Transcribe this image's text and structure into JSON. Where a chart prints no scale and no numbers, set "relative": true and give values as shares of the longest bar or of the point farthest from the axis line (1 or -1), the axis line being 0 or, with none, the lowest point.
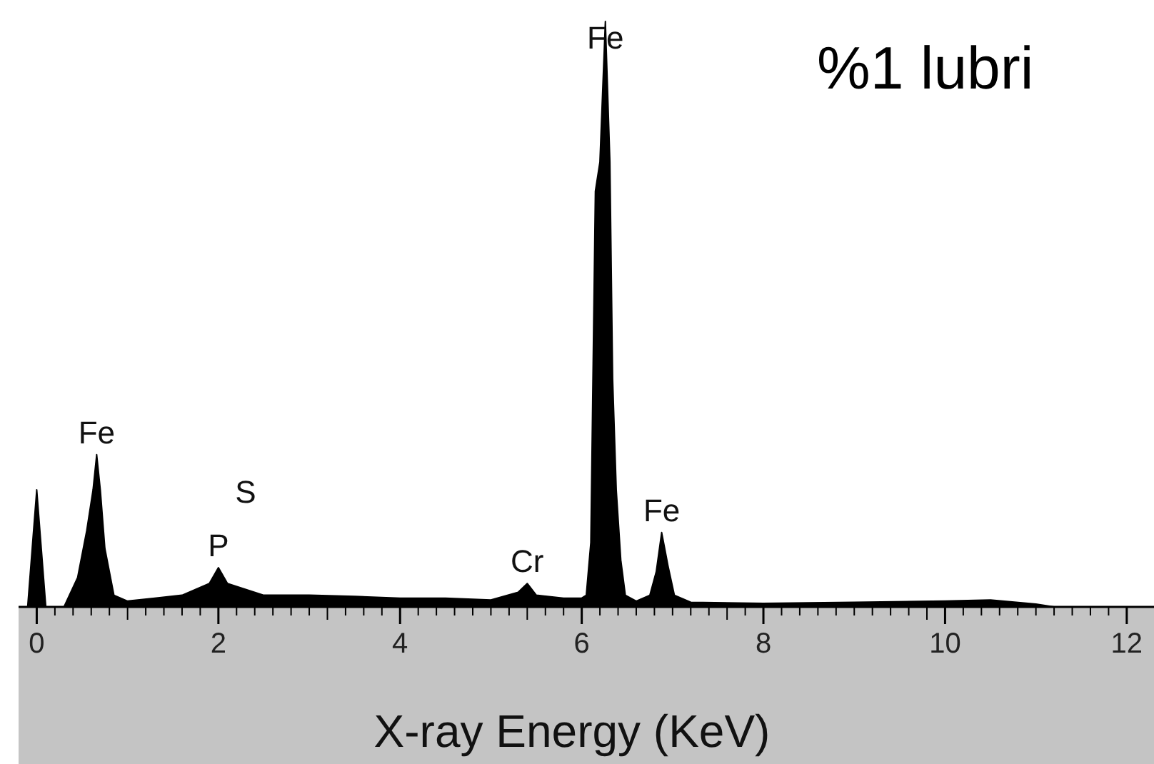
{
  "chart_data": {
    "type": "area",
    "title": "%1 lubri",
    "xlabel": "X-ray Energy (KeV)",
    "relative": true,
    "xlim": [
      -0.2,
      12.3
    ],
    "xticks": [
      0,
      2,
      4,
      6,
      8,
      10,
      12
    ],
    "x": [
      -0.1,
      -0.05,
      0,
      0.05,
      0.1,
      0.3,
      0.45,
      0.55,
      0.62,
      0.66,
      0.7,
      0.75,
      0.85,
      1.0,
      1.3,
      1.6,
      1.9,
      2.0,
      2.1,
      2.3,
      2.5,
      3.0,
      3.5,
      4.0,
      4.5,
      5.0,
      5.3,
      5.4,
      5.5,
      5.8,
      6.0,
      6.05,
      6.1,
      6.12,
      6.15,
      6.2,
      6.26,
      6.31,
      6.34,
      6.38,
      6.43,
      6.48,
      6.6,
      6.75,
      6.82,
      6.88,
      6.95,
      7.02,
      7.2,
      8,
      9,
      10,
      10.5,
      11,
      11.2,
      12
    ],
    "series": [
      {
        "color": "#000000",
        "values": [
          0,
          0.1,
          0.2,
          0.1,
          0,
          0,
          0.05,
          0.13,
          0.2,
          0.26,
          0.2,
          0.1,
          0.02,
          0.01,
          0.015,
          0.02,
          0.04,
          0.067,
          0.04,
          0.03,
          0.02,
          0.02,
          0.018,
          0.015,
          0.015,
          0.012,
          0.025,
          0.04,
          0.02,
          0.015,
          0.015,
          0.02,
          0.11,
          0.35,
          0.71,
          0.76,
          1,
          0.76,
          0.39,
          0.2,
          0.08,
          0.02,
          0.01,
          0.02,
          0.06,
          0.127,
          0.07,
          0.02,
          0.008,
          0.006,
          0.008,
          0.01,
          0.012,
          0.005,
          0,
          0
        ]
      }
    ],
    "annotations": [
      {
        "text": "Fe",
        "x": 6.26,
        "y": 1
      },
      {
        "text": "Fe",
        "x": 0.66,
        "y": 0.26
      },
      "S",
      {
        "text": "P",
        "x": 2.0,
        "y": 0.067
      },
      {
        "text": "Cr",
        "x": 5.4,
        "y": 0.04
      },
      {
        "text": "Fe",
        "x": 6.88,
        "y": 0.127
      }
    ]
  }
}
